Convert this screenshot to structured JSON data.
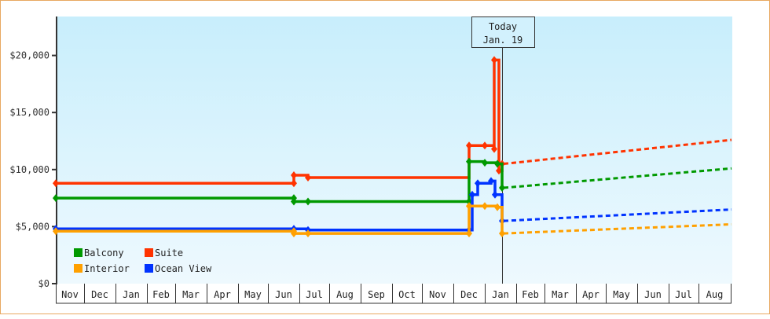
{
  "chart_data": {
    "type": "line",
    "title": "",
    "xlabel": "",
    "ylabel": "",
    "ylim": [
      0,
      23500
    ],
    "yticks": [
      "$0",
      "$5,000",
      "$10,000",
      "$15,000",
      "$20,000"
    ],
    "ytick_values": [
      0,
      5000,
      10000,
      15000,
      20000
    ],
    "x_months": [
      "Nov",
      "Dec",
      "Jan",
      "Feb",
      "Mar",
      "Apr",
      "May",
      "Jun",
      "Jul",
      "Aug",
      "Sep",
      "Oct",
      "Nov",
      "Dec",
      "Jan",
      "Feb",
      "Mar",
      "Apr",
      "May",
      "Jun",
      "Jul",
      "Aug"
    ],
    "today_marker": {
      "line1": "Today",
      "line2": "Jan. 19"
    },
    "legend": [
      {
        "name": "Balcony",
        "color": "#009900"
      },
      {
        "name": "Suite",
        "color": "#ff3300"
      },
      {
        "name": "Interior",
        "color": "#ffa000"
      },
      {
        "name": "Ocean View",
        "color": "#0033ff"
      }
    ],
    "series": [
      {
        "name": "Suite",
        "color": "#ff3300",
        "history": [
          [
            "Nov (start)",
            8800
          ],
          [
            "Jun",
            8800
          ],
          [
            "Jun",
            9500
          ],
          [
            "Jul",
            9300
          ],
          [
            "Dec",
            12100
          ],
          [
            "Dec",
            12100
          ],
          [
            "Jan",
            11800
          ],
          [
            "Jan",
            19600
          ],
          [
            "Jan",
            9900
          ],
          [
            "Jan. 19",
            10500
          ]
        ],
        "forecast": [
          [
            "Jan. 19",
            10500
          ],
          [
            "Aug end",
            12600
          ]
        ]
      },
      {
        "name": "Balcony",
        "color": "#009900",
        "history": [
          [
            "Nov (start)",
            7500
          ],
          [
            "Jun",
            7500
          ],
          [
            "Jun",
            7200
          ],
          [
            "Jul",
            7200
          ],
          [
            "Dec",
            7200
          ],
          [
            "Dec",
            10700
          ],
          [
            "Jan",
            10600
          ],
          [
            "Jan",
            10500
          ],
          [
            "Jan. 19",
            8400
          ]
        ],
        "forecast": [
          [
            "Jan. 19",
            8400
          ],
          [
            "Aug end",
            10100
          ]
        ]
      },
      {
        "name": "Ocean View",
        "color": "#0033ff",
        "history": [
          [
            "Nov (start)",
            4800
          ],
          [
            "Jun",
            4800
          ],
          [
            "Jul",
            4700
          ],
          [
            "Dec",
            4700
          ],
          [
            "Dec",
            7800
          ],
          [
            "Dec",
            8800
          ],
          [
            "Jan",
            9000
          ],
          [
            "Jan",
            7800
          ],
          [
            "Jan. 19",
            5500
          ]
        ],
        "forecast": [
          [
            "Jan. 19",
            5500
          ],
          [
            "Aug end",
            6500
          ]
        ]
      },
      {
        "name": "Interior",
        "color": "#ffa000",
        "history": [
          [
            "Nov (start)",
            4600
          ],
          [
            "Jun",
            4600
          ],
          [
            "Jun",
            4400
          ],
          [
            "Jul",
            4400
          ],
          [
            "Dec",
            4400
          ],
          [
            "Dec",
            6800
          ],
          [
            "Jan",
            6800
          ],
          [
            "Jan",
            6700
          ],
          [
            "Jan. 19",
            4400
          ]
        ],
        "forecast": [
          [
            "Jan. 19",
            4400
          ],
          [
            "Aug end",
            5200
          ]
        ]
      }
    ]
  }
}
